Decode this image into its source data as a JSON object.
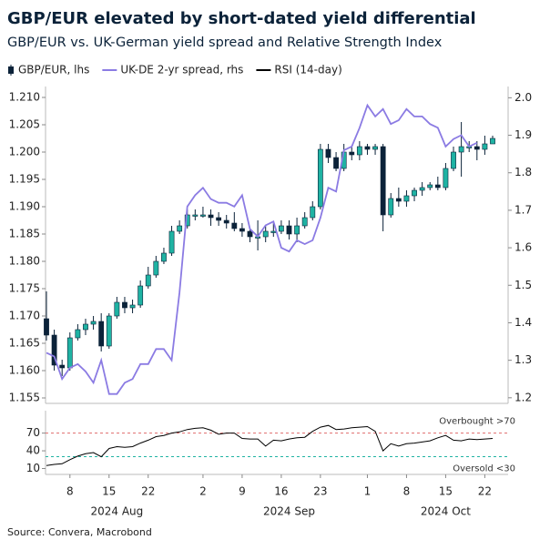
{
  "chart_data": [
    {
      "type": "candlestick",
      "title": "GBP/EUR elevated by short-dated yield differential",
      "subtitle": "GBP/EUR vs. UK-German yield spread and Relative Strength Index",
      "source": "Source: Convera, Macrobond",
      "categories": [
        "2024-08-05",
        "2024-08-06",
        "2024-08-07",
        "2024-08-08",
        "2024-08-09",
        "2024-08-12",
        "2024-08-13",
        "2024-08-14",
        "2024-08-15",
        "2024-08-16",
        "2024-08-19",
        "2024-08-20",
        "2024-08-21",
        "2024-08-22",
        "2024-08-23",
        "2024-08-26",
        "2024-08-27",
        "2024-08-28",
        "2024-08-29",
        "2024-08-30",
        "2024-09-02",
        "2024-09-03",
        "2024-09-04",
        "2024-09-05",
        "2024-09-06",
        "2024-09-09",
        "2024-09-10",
        "2024-09-11",
        "2024-09-12",
        "2024-09-13",
        "2024-09-16",
        "2024-09-17",
        "2024-09-18",
        "2024-09-19",
        "2024-09-20",
        "2024-09-23",
        "2024-09-24",
        "2024-09-25",
        "2024-09-26",
        "2024-09-27",
        "2024-09-30",
        "2024-10-01",
        "2024-10-02",
        "2024-10-03",
        "2024-10-04",
        "2024-10-07",
        "2024-10-08",
        "2024-10-09",
        "2024-10-10",
        "2024-10-11",
        "2024-10-14",
        "2024-10-15",
        "2024-10-16",
        "2024-10-17",
        "2024-10-18",
        "2024-10-21",
        "2024-10-22",
        "2024-10-23"
      ],
      "series": [
        {
          "name": "GBP/EUR, lhs",
          "type": "candlestick",
          "up_color": "#1fb3a3",
          "down_color": "#0b2239",
          "open": [
            1.1695,
            1.1665,
            1.161,
            1.1605,
            1.166,
            1.1675,
            1.1685,
            1.169,
            1.1645,
            1.17,
            1.1725,
            1.1715,
            1.172,
            1.1755,
            1.1775,
            1.18,
            1.1815,
            1.1855,
            1.1865,
            1.1885,
            1.1885,
            1.1885,
            1.188,
            1.1875,
            1.187,
            1.186,
            1.1855,
            1.1845,
            1.1845,
            1.1855,
            1.1855,
            1.1865,
            1.185,
            1.1865,
            1.188,
            1.19,
            1.2005,
            1.199,
            1.197,
            1.2,
            1.1995,
            1.201,
            1.2005,
            1.201,
            1.1885,
            1.1915,
            1.191,
            1.192,
            1.193,
            1.1935,
            1.194,
            1.1935,
            1.197,
            1.2,
            1.201,
            1.201,
            1.2005,
            1.2015
          ],
          "high": [
            1.1745,
            1.1675,
            1.162,
            1.167,
            1.1685,
            1.1695,
            1.17,
            1.1705,
            1.1705,
            1.1735,
            1.1735,
            1.173,
            1.1765,
            1.179,
            1.181,
            1.1825,
            1.1865,
            1.1875,
            1.1895,
            1.1895,
            1.19,
            1.1895,
            1.189,
            1.1885,
            1.189,
            1.187,
            1.186,
            1.1875,
            1.1865,
            1.187,
            1.1875,
            1.1875,
            1.188,
            1.189,
            1.191,
            1.2015,
            1.2015,
            1.2,
            1.2015,
            1.201,
            1.202,
            1.2015,
            1.2015,
            1.2015,
            1.1925,
            1.1935,
            1.193,
            1.1935,
            1.1945,
            1.1945,
            1.1955,
            1.198,
            1.201,
            1.2055,
            1.202,
            1.202,
            1.203,
            1.203
          ],
          "low": [
            1.1655,
            1.16,
            1.159,
            1.16,
            1.1655,
            1.1665,
            1.1675,
            1.1635,
            1.164,
            1.1695,
            1.1705,
            1.1705,
            1.1715,
            1.175,
            1.177,
            1.1795,
            1.181,
            1.185,
            1.186,
            1.1875,
            1.188,
            1.1865,
            1.1865,
            1.186,
            1.1855,
            1.1845,
            1.1835,
            1.182,
            1.1835,
            1.1845,
            1.185,
            1.184,
            1.1835,
            1.186,
            1.1875,
            1.1895,
            1.198,
            1.1965,
            1.1965,
            1.1985,
            1.1985,
            1.1995,
            1.1995,
            1.1855,
            1.188,
            1.19,
            1.19,
            1.191,
            1.192,
            1.193,
            1.193,
            1.193,
            1.1965,
            1.1955,
            1.2,
            1.1985,
            1.1995,
            1.2015
          ],
          "close": [
            1.1665,
            1.161,
            1.1605,
            1.166,
            1.1675,
            1.1685,
            1.169,
            1.1645,
            1.17,
            1.1725,
            1.1715,
            1.172,
            1.1755,
            1.1775,
            1.18,
            1.1815,
            1.1855,
            1.1865,
            1.1885,
            1.1885,
            1.1885,
            1.188,
            1.1875,
            1.187,
            1.186,
            1.1855,
            1.1845,
            1.1845,
            1.1855,
            1.1855,
            1.1865,
            1.185,
            1.1865,
            1.188,
            1.19,
            1.2005,
            1.199,
            1.197,
            1.2,
            1.1995,
            1.201,
            1.2005,
            1.201,
            1.1885,
            1.1915,
            1.191,
            1.192,
            1.193,
            1.1935,
            1.194,
            1.1935,
            1.197,
            1.2,
            1.201,
            1.201,
            1.2005,
            1.2015,
            1.2025
          ]
        },
        {
          "name": "UK-DE 2-yr spread, rhs",
          "type": "line",
          "axis": "y2",
          "color": "#8b7be3",
          "values": [
            1.32,
            1.31,
            1.25,
            1.28,
            1.29,
            1.27,
            1.24,
            1.3,
            1.21,
            1.21,
            1.24,
            1.25,
            1.29,
            1.29,
            1.33,
            1.33,
            1.3,
            1.48,
            1.71,
            1.74,
            1.76,
            1.73,
            1.72,
            1.72,
            1.71,
            1.74,
            1.65,
            1.63,
            1.66,
            1.67,
            1.6,
            1.59,
            1.62,
            1.61,
            1.62,
            1.68,
            1.76,
            1.75,
            1.86,
            1.87,
            1.92,
            1.98,
            1.95,
            1.97,
            1.93,
            1.94,
            1.97,
            1.95,
            1.95,
            1.93,
            1.92,
            1.87,
            1.89,
            1.9,
            1.87,
            1.88,
            null,
            null
          ]
        }
      ],
      "ylim": [
        1.154,
        1.212
      ],
      "yticks": [
        1.155,
        {
          "value": 1.16,
          "label": "1.160"
        },
        1.165,
        {
          "value": 1.17,
          "label": "1.170"
        },
        1.175,
        {
          "value": 1.18,
          "label": "1.180"
        },
        1.185,
        {
          "value": 1.19,
          "label": "1.190"
        },
        1.195,
        {
          "value": 1.2,
          "label": "1.200"
        },
        1.205,
        {
          "value": 1.21,
          "label": "1.210"
        }
      ],
      "y2lim": [
        1.185,
        2.03
      ],
      "y2ticks": [
        1.2,
        1.3,
        1.4,
        1.5,
        1.6,
        1.7,
        1.8,
        1.9,
        {
          "value": 2,
          "label": "2.0"
        }
      ],
      "xticks": [
        {
          "value": "2024-08-08",
          "label": "8"
        },
        {
          "value": "2024-08-15",
          "label": "15"
        },
        {
          "value": "2024-08-22",
          "label": "22"
        },
        {
          "value": "2024-09-02",
          "label": "2"
        },
        {
          "value": "2024-09-09",
          "label": "9"
        },
        {
          "value": "2024-09-16",
          "label": "16"
        },
        {
          "value": "2024-09-23",
          "label": "23"
        },
        {
          "value": "2024-10-01",
          "label": "1"
        },
        {
          "value": "2024-10-08",
          "label": "8"
        },
        {
          "value": "2024-10-15",
          "label": "15"
        },
        {
          "value": "2024-10-22",
          "label": "22"
        }
      ],
      "month_labels": [
        {
          "value": "2024-08-16",
          "label": "2024 Aug"
        },
        {
          "value": "2024-09-17",
          "label": "2024 Sep"
        },
        {
          "value": "2024-10-15",
          "label": "2024 Oct"
        }
      ]
    },
    {
      "type": "line",
      "series": [
        {
          "name": "RSI (14-day)",
          "color": "#000000",
          "values": [
            15,
            17,
            18,
            25,
            31,
            35,
            37,
            30,
            44,
            47,
            46,
            47,
            53,
            58,
            64,
            66,
            70,
            72,
            76,
            78,
            79,
            75,
            68,
            70,
            70,
            61,
            60,
            60,
            48,
            58,
            57,
            60,
            62,
            63,
            73,
            80,
            83,
            76,
            77,
            79,
            80,
            81,
            73,
            40,
            52,
            48,
            52,
            53,
            55,
            57,
            62,
            66,
            58,
            57,
            60,
            59,
            60,
            61
          ]
        }
      ],
      "ylim": [
        0,
        108
      ],
      "yticks": [
        10,
        40,
        70
      ],
      "hlines": [
        {
          "value": 70,
          "label": "Overbought >70",
          "color": "#e06c6c"
        },
        {
          "value": 30,
          "label": "Oversold <30",
          "color": "#1fb3a3"
        }
      ]
    }
  ]
}
